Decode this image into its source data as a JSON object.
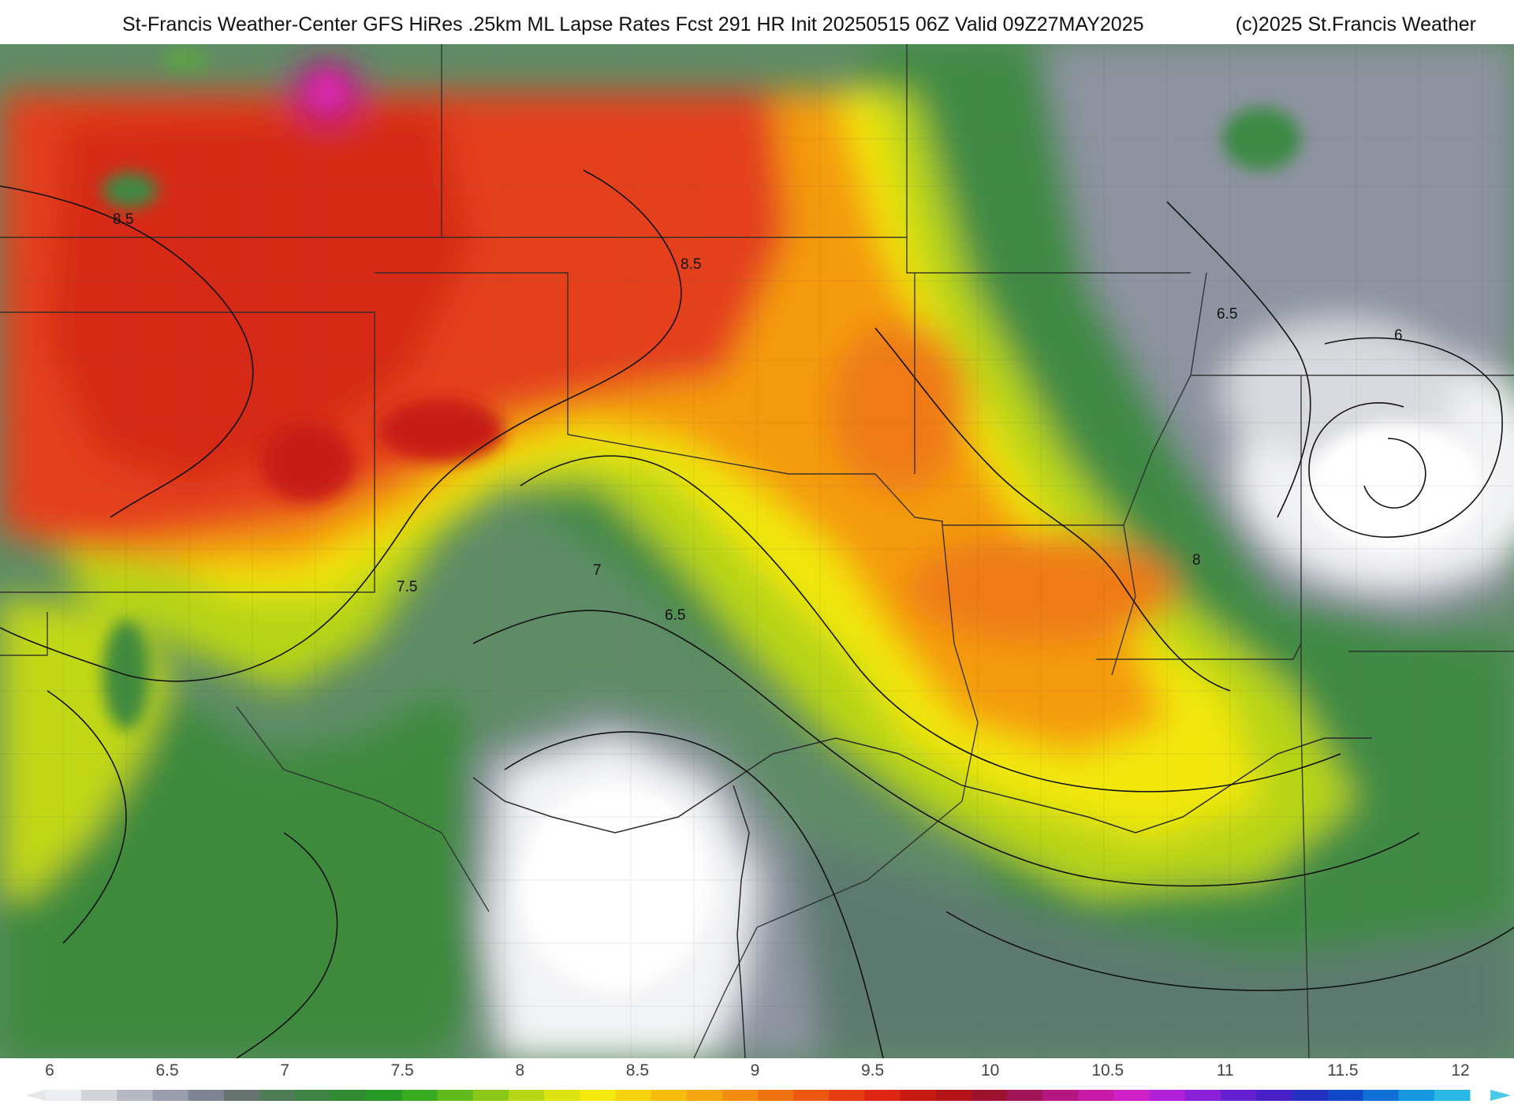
{
  "header": {
    "title": "St-Francis Weather-Center GFS HiRes .25km ML Lapse Rates  Fcst 291 HR Init 20250515 06Z  Valid 09Z27MAY2025",
    "copyright": "(c)2025 St.Francis Weather"
  },
  "map": {
    "field": "ML Lapse Rates",
    "contour_labels": [
      {
        "text": "8.5",
        "where": "northwest"
      },
      {
        "text": "8.5",
        "where": "north-central"
      },
      {
        "text": "7.5",
        "where": "west-central"
      },
      {
        "text": "7",
        "where": "central"
      },
      {
        "text": "6.5",
        "where": "south-central"
      },
      {
        "text": "6.5",
        "where": "northeast"
      },
      {
        "text": "6",
        "where": "east"
      },
      {
        "text": "8",
        "where": "east-central"
      }
    ]
  },
  "colorbar": {
    "ticks": [
      "6",
      "6.5",
      "7",
      "7.5",
      "8",
      "8.5",
      "9",
      "9.5",
      "10",
      "10.5",
      "11",
      "11.5",
      "12"
    ],
    "colors": [
      "#eceef1",
      "#d2d4da",
      "#b6b9c4",
      "#9a9eac",
      "#7e8494",
      "#66736f",
      "#4f7b57",
      "#3e8244",
      "#2f8a32",
      "#259a25",
      "#39ab20",
      "#62bb1c",
      "#8cc81a",
      "#b6d616",
      "#dde412",
      "#f4ea10",
      "#f6d40f",
      "#f7bd0e",
      "#f6a60e",
      "#f38d0f",
      "#ef7310",
      "#eb5811",
      "#e53d12",
      "#dc2512",
      "#c81912",
      "#b21418",
      "#9e1230",
      "#a01458",
      "#b41880",
      "#c81ca8",
      "#d020c8",
      "#b020d8",
      "#8a20d8",
      "#6420d0",
      "#4820c8",
      "#2430c0",
      "#1048c8",
      "#1070d8",
      "#1898e0",
      "#2cb8e4"
    ]
  }
}
